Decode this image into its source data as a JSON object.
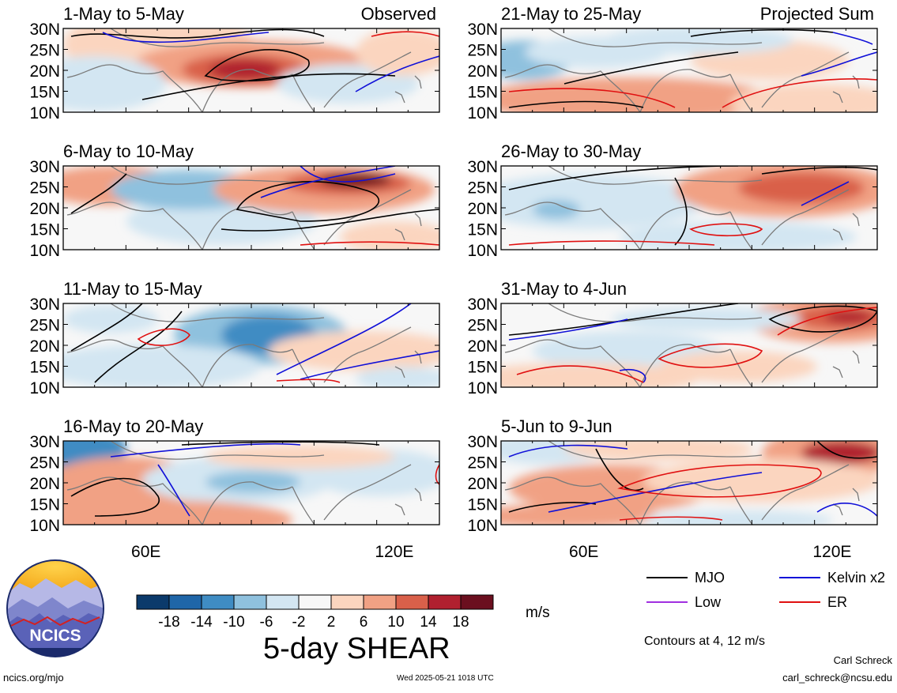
{
  "panel_groups": {
    "left_label": "Observed",
    "right_label": "Projected Sum"
  },
  "panels": [
    {
      "id": "p1",
      "col": 0,
      "row": 0,
      "period": "1-May to 5-May"
    },
    {
      "id": "p2",
      "col": 0,
      "row": 1,
      "period": "6-May to 10-May"
    },
    {
      "id": "p3",
      "col": 0,
      "row": 2,
      "period": "11-May to 15-May"
    },
    {
      "id": "p4",
      "col": 0,
      "row": 3,
      "period": "16-May to 20-May"
    },
    {
      "id": "p5",
      "col": 1,
      "row": 0,
      "period": "21-May to 25-May"
    },
    {
      "id": "p6",
      "col": 1,
      "row": 1,
      "period": "26-May to 30-May"
    },
    {
      "id": "p7",
      "col": 1,
      "row": 2,
      "period": "31-May to 4-Jun"
    },
    {
      "id": "p8",
      "col": 1,
      "row": 3,
      "period": "5-Jun to 9-Jun"
    }
  ],
  "axes": {
    "lat_labels": [
      "30N",
      "25N",
      "20N",
      "15N",
      "10N"
    ],
    "lon_labels": [
      "60E",
      "120E"
    ]
  },
  "colorbar": {
    "tick_labels": [
      "-18",
      "-14",
      "-10",
      "-6",
      "-2",
      "2",
      "6",
      "10",
      "14",
      "18"
    ],
    "colors": [
      "#0b3a6b",
      "#1f66a8",
      "#3f8cc3",
      "#8fc1de",
      "#d3e6f2",
      "#f7f7f7",
      "#fbd5bf",
      "#f1a184",
      "#d9604a",
      "#b0202f",
      "#6b0f1f"
    ],
    "units": "m/s"
  },
  "title": "5-day SHEAR",
  "legend": {
    "items": [
      {
        "label": "MJO",
        "color": "#000000"
      },
      {
        "label": "Kelvin x2",
        "color": "#1010d8"
      },
      {
        "label": "Low",
        "color": "#a030e0"
      },
      {
        "label": "ER",
        "color": "#e01010"
      }
    ],
    "note": "Contours at 4, 12 m/s"
  },
  "logo": {
    "text": "NCICS"
  },
  "footer": {
    "site": "ncics.org/mjo",
    "timestamp": "Wed 2025-05-21 1018 UTC",
    "author": "Carl Schreck",
    "email": "carl_schreck@ncsu.edu"
  }
}
